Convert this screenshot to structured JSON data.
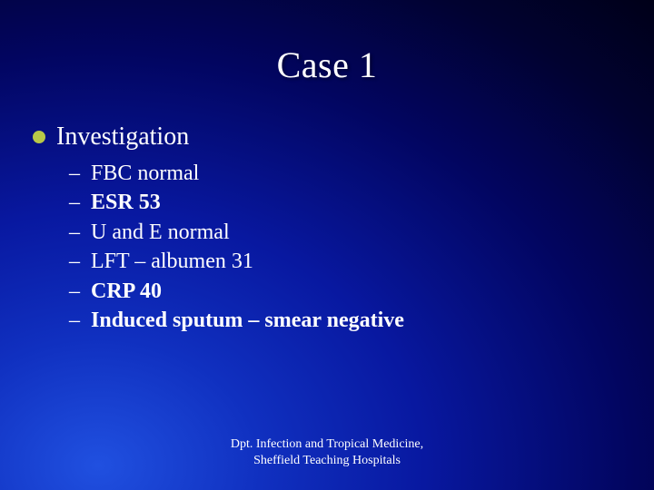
{
  "slide": {
    "title": "Case 1",
    "title_fontsize": 40,
    "title_color": "#ffffff",
    "background_gradient": {
      "type": "radial",
      "center": "15% 95%",
      "stops": [
        "#2050e0",
        "#1030c0",
        "#0818a0",
        "#020560",
        "#010230",
        "#000018"
      ]
    }
  },
  "bullet": {
    "disc_color": "#b8c848",
    "label": "Investigation",
    "label_fontsize": 28
  },
  "items": [
    {
      "text": "FBC normal",
      "bold": false
    },
    {
      "text": "ESR 53",
      "bold": true
    },
    {
      "text": "U and E normal",
      "bold": false
    },
    {
      "text": "LFT – albumen 31",
      "bold": false
    },
    {
      "text": "CRP 40",
      "bold": true
    },
    {
      "text": "Induced sputum – smear negative",
      "bold": true
    }
  ],
  "item_fontsize": 24,
  "footer": {
    "line1": "Dpt. Infection and Tropical Medicine,",
    "line2": "Sheffield Teaching Hospitals",
    "fontsize": 14
  }
}
